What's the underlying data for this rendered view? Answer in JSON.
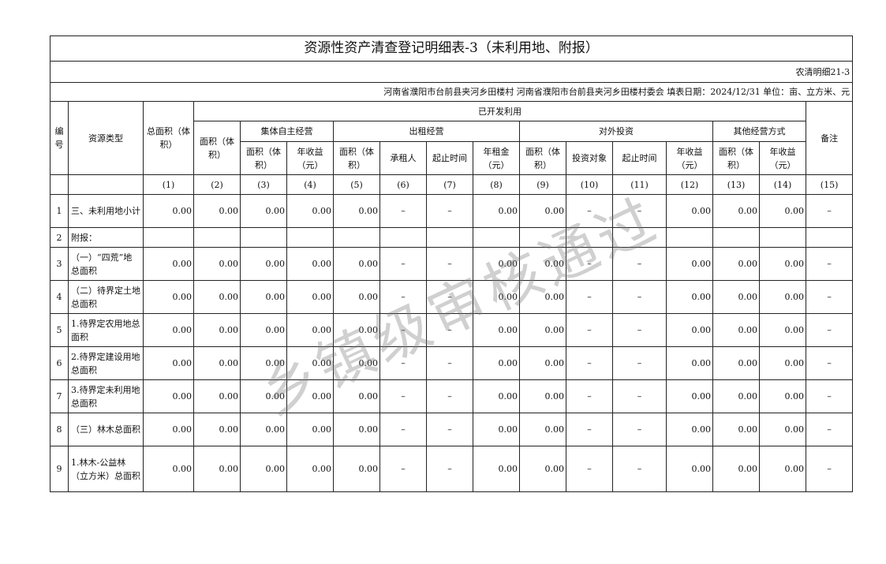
{
  "title": "资源性资产清查登记明细表-3（未利用地、附报）",
  "form_code": "农清明细21-3",
  "info": "河南省濮阳市台前县夹河乡田楼村  河南省濮阳市台前县夹河乡田楼村委会  填表日期：2024/12/31  单位：亩、立方米、元",
  "headers": {
    "no": "编号",
    "type": "资源类型",
    "total": "总面积（体积）",
    "developed": "已开发利用",
    "remark": "备注",
    "area": "面积（体积）",
    "self": "集体自主经营",
    "lease": "出租经营",
    "invest": "对外投资",
    "other": "其他经营方式",
    "self_area": "面积（体积）",
    "self_income": "年收益（元）",
    "lease_area": "面积（体积）",
    "lessee": "承租人",
    "lease_period": "起止时间",
    "rent": "年租金（元）",
    "inv_area": "面积（体积）",
    "inv_target": "投资对象",
    "inv_period": "起止时间",
    "inv_income": "年收益（元）",
    "oth_area": "面积（体积）",
    "oth_income": "年收益（元）"
  },
  "col_numbers": [
    "",
    "",
    "(1)",
    "(2)",
    "(3)",
    "(4)",
    "(5)",
    "(6)",
    "(7)",
    "(8)",
    "(9)",
    "(10)",
    "(11)",
    "(12)",
    "(13)",
    "(14)",
    "(15)"
  ],
  "rows": [
    {
      "no": "1",
      "type": "三、未利用地小计",
      "values": [
        "0.00",
        "0.00",
        "0.00",
        "0.00",
        "0.00",
        "–",
        "–",
        "0.00",
        "0.00",
        "–",
        "–",
        "0.00",
        "0.00",
        "0.00",
        "–"
      ]
    },
    {
      "no": "2",
      "type": "附报：",
      "values": [
        "",
        "",
        "",
        "",
        "",
        "",
        "",
        "",
        "",
        "",
        "",
        "",
        "",
        "",
        ""
      ]
    },
    {
      "no": "3",
      "type": "（一）“四荒”地总面积",
      "values": [
        "0.00",
        "0.00",
        "0.00",
        "0.00",
        "0.00",
        "–",
        "–",
        "0.00",
        "0.00",
        "–",
        "–",
        "0.00",
        "0.00",
        "0.00",
        "–"
      ]
    },
    {
      "no": "4",
      "type": "（二）待界定土地总面积",
      "values": [
        "0.00",
        "0.00",
        "0.00",
        "0.00",
        "0.00",
        "–",
        "–",
        "0.00",
        "0.00",
        "–",
        "–",
        "0.00",
        "0.00",
        "0.00",
        "–"
      ]
    },
    {
      "no": "5",
      "type": "1.待界定农用地总面积",
      "values": [
        "0.00",
        "0.00",
        "0.00",
        "0.00",
        "0.00",
        "–",
        "–",
        "0.00",
        "0.00",
        "–",
        "–",
        "0.00",
        "0.00",
        "0.00",
        "–"
      ]
    },
    {
      "no": "6",
      "type": "2.待界定建设用地总面积",
      "values": [
        "0.00",
        "0.00",
        "0.00",
        "0.00",
        "0.00",
        "–",
        "–",
        "0.00",
        "0.00",
        "–",
        "–",
        "0.00",
        "0.00",
        "0.00",
        "–"
      ]
    },
    {
      "no": "7",
      "type": "3.待界定未利用地总面积",
      "values": [
        "0.00",
        "0.00",
        "0.00",
        "0.00",
        "0.00",
        "–",
        "–",
        "0.00",
        "0.00",
        "–",
        "–",
        "0.00",
        "0.00",
        "0.00",
        "–"
      ]
    },
    {
      "no": "8",
      "type": "（三）林木总面积",
      "values": [
        "0.00",
        "0.00",
        "0.00",
        "0.00",
        "0.00",
        "–",
        "–",
        "0.00",
        "0.00",
        "–",
        "–",
        "0.00",
        "0.00",
        "0.00",
        "–"
      ]
    },
    {
      "no": "9",
      "type": "1.林木-公益林（立方米）总面积",
      "values": [
        "0.00",
        "0.00",
        "0.00",
        "0.00",
        "0.00",
        "–",
        "–",
        "0.00",
        "0.00",
        "–",
        "–",
        "0.00",
        "0.00",
        "0.00",
        "–"
      ]
    }
  ],
  "watermark": "乡镇级审核通过"
}
